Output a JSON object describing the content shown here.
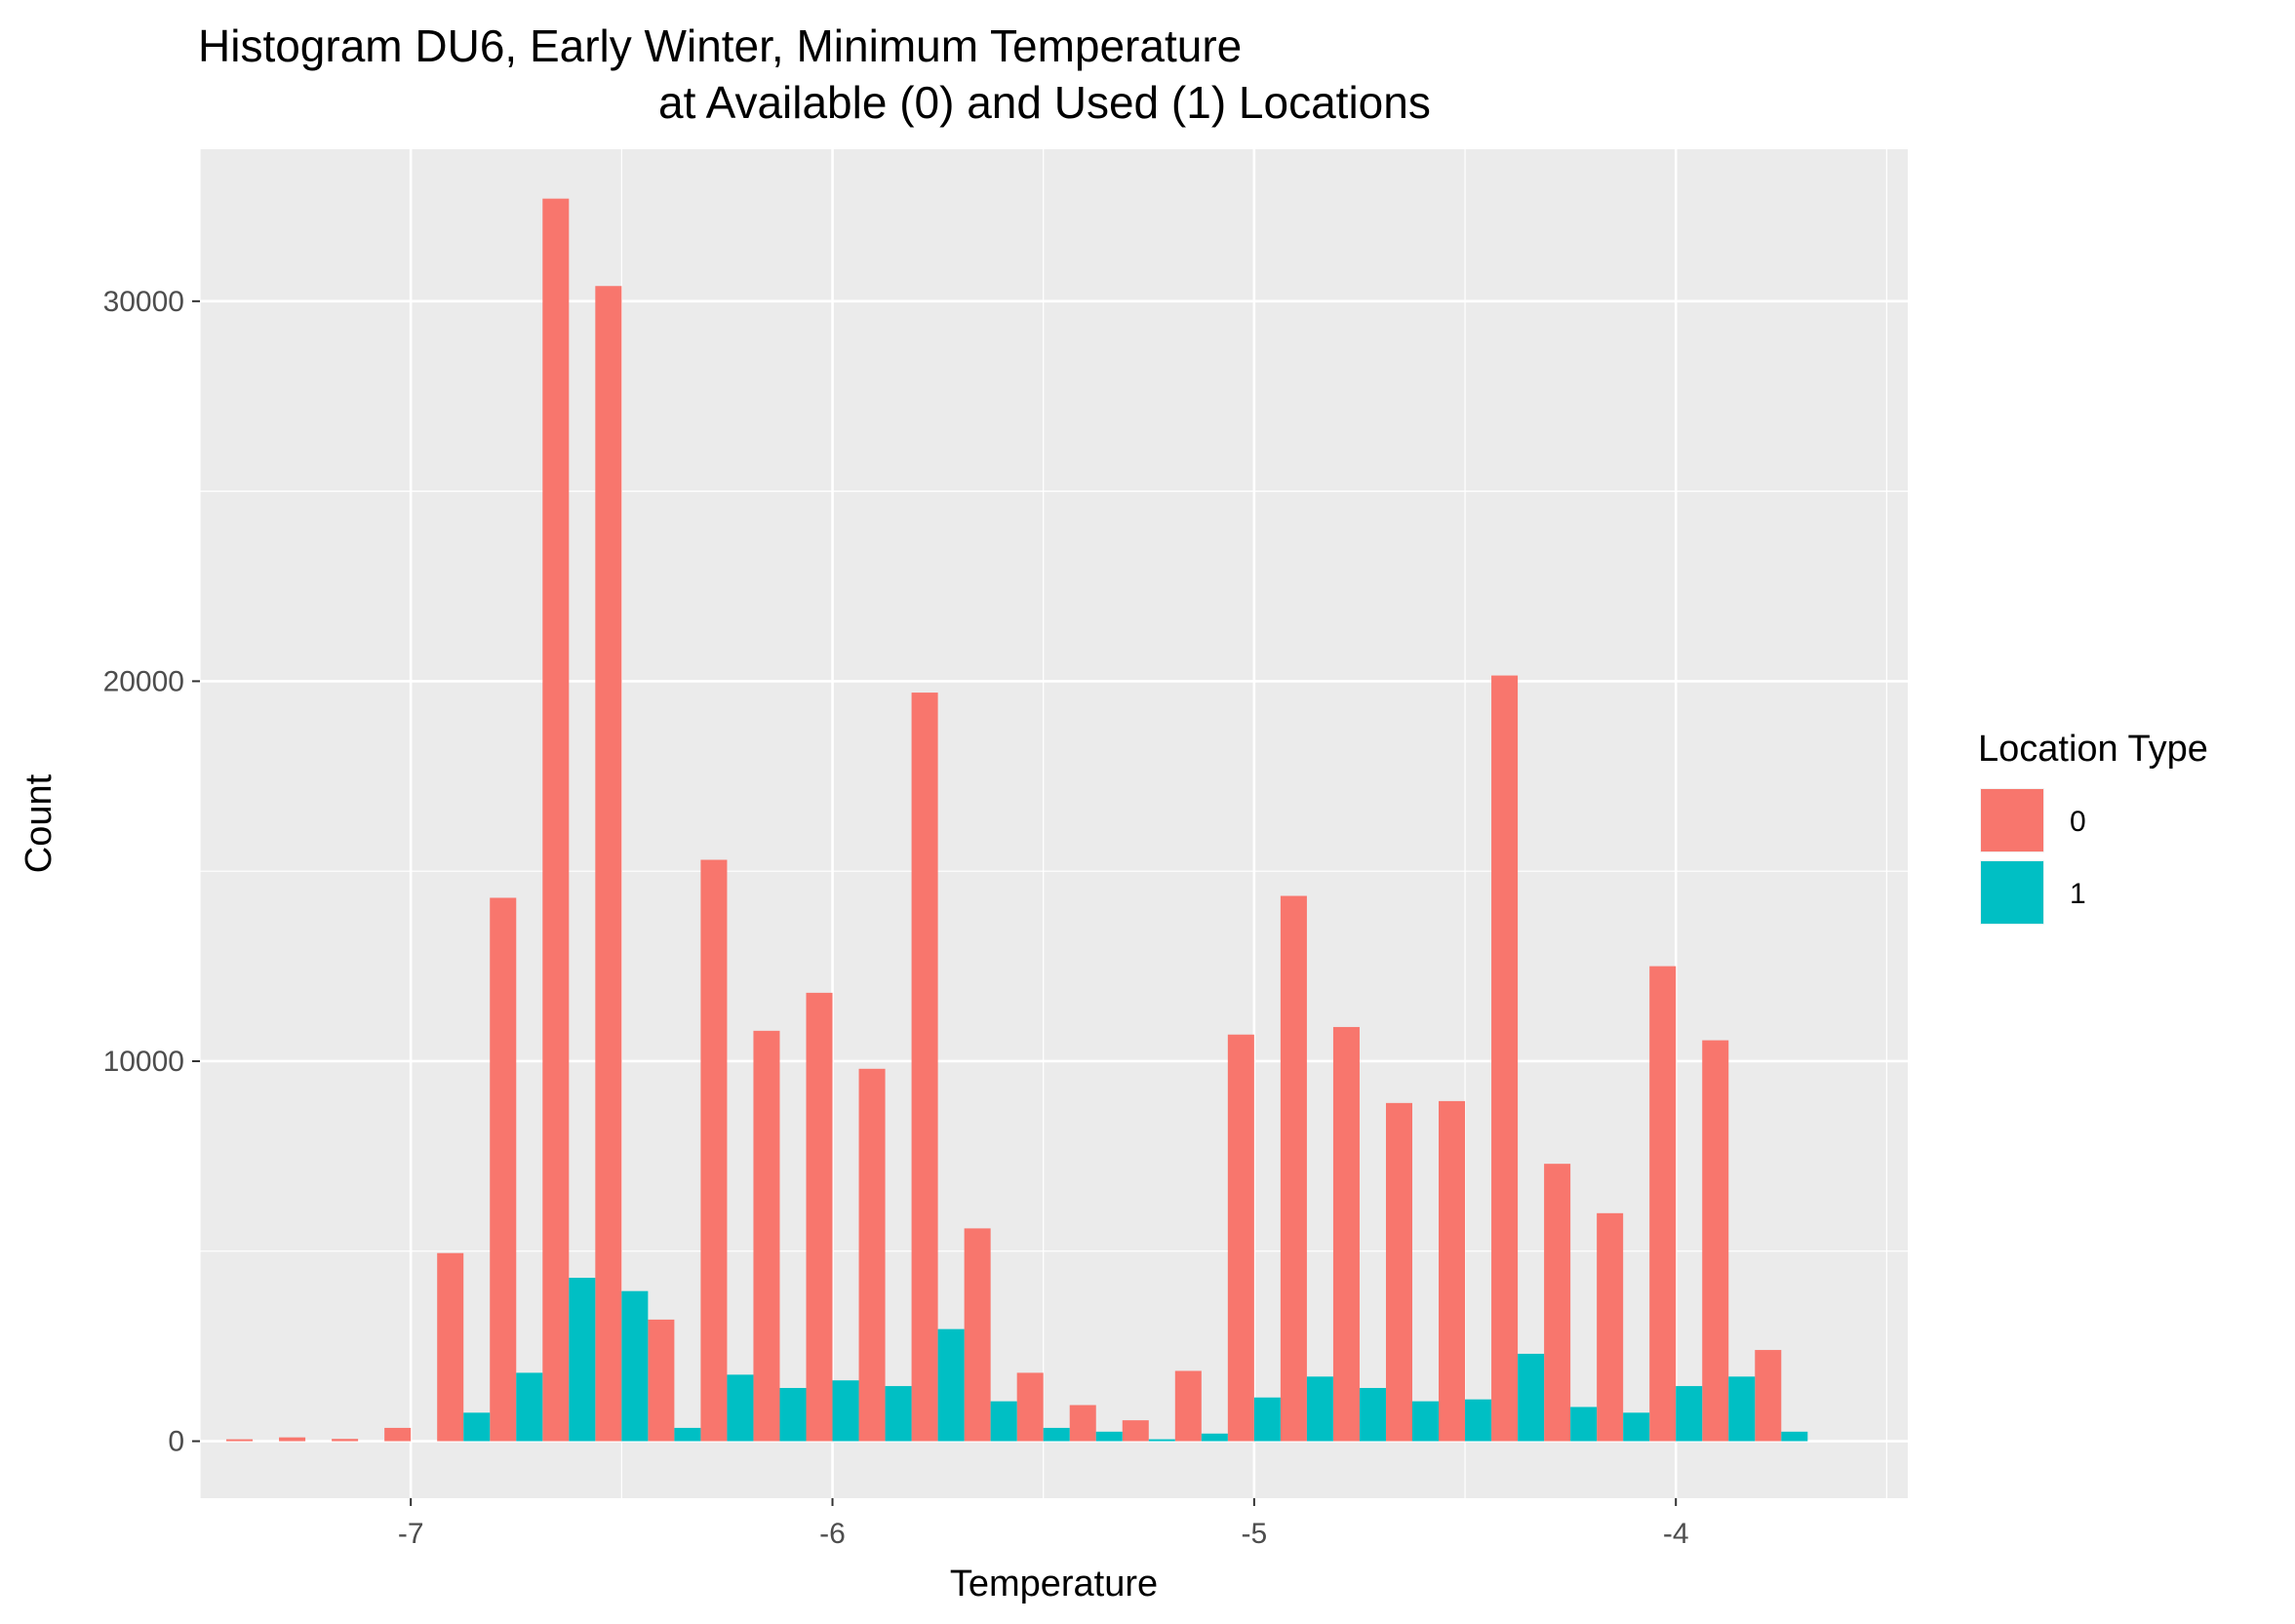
{
  "chart_data": {
    "type": "bar",
    "title": "Histogram DU6, Early Winter, Minimum Temperature",
    "subtitle": "at Available (0) and Used (1) Locations",
    "xlabel": "Temperature",
    "ylabel": "Count",
    "xlim": [
      -7.5,
      -3.45
    ],
    "ylim": [
      -1500,
      34000
    ],
    "x_ticks": [
      -7,
      -6,
      -5,
      -4
    ],
    "x_tick_labels": [
      "-7",
      "-6",
      "-5",
      "-4"
    ],
    "y_ticks": [
      0,
      10000,
      20000,
      30000
    ],
    "y_tick_labels": [
      "0",
      "10000",
      "20000",
      "30000"
    ],
    "bin_width": 0.125,
    "bin_centers": [
      -7.375,
      -7.25,
      -7.125,
      -7.0,
      -6.875,
      -6.75,
      -6.625,
      -6.5,
      -6.375,
      -6.25,
      -6.125,
      -6.0,
      -5.875,
      -5.75,
      -5.625,
      -5.5,
      -5.375,
      -5.25,
      -5.125,
      -5.0,
      -4.875,
      -4.75,
      -4.625,
      -4.5,
      -4.375,
      -4.25,
      -4.125,
      -4.0,
      -3.875,
      -3.75
    ],
    "grid": true,
    "legend": {
      "title": "Location Type",
      "position": "right"
    },
    "series": [
      {
        "name": "0",
        "color": "#F8766D",
        "values": [
          50,
          100,
          60,
          350,
          4950,
          14300,
          32700,
          30400,
          3200,
          15300,
          10800,
          11800,
          9800,
          19700,
          5600,
          1800,
          950,
          550,
          1850,
          10700,
          14350,
          10900,
          8900,
          8950,
          20150,
          7300,
          6000,
          12500,
          10550,
          2400
        ]
      },
      {
        "name": "1",
        "color": "#00BFC4",
        "values": [
          0,
          0,
          0,
          0,
          750,
          1800,
          4300,
          3950,
          350,
          1750,
          1400,
          1600,
          1450,
          2950,
          1050,
          350,
          250,
          50,
          200,
          1150,
          1700,
          1400,
          1050,
          1100,
          2300,
          900,
          750,
          1450,
          1700,
          250
        ]
      }
    ]
  }
}
